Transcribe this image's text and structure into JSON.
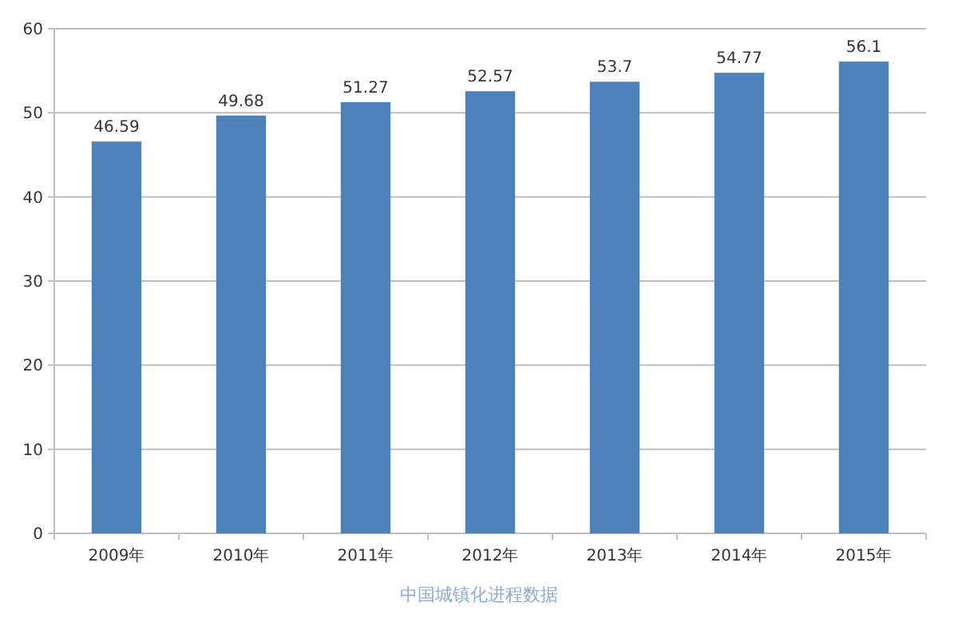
{
  "chart_data": {
    "type": "bar",
    "categories": [
      "2009年",
      "2010年",
      "2011年",
      "2012年",
      "2013年",
      "2014年",
      "2015年"
    ],
    "values": [
      46.59,
      49.68,
      51.27,
      52.57,
      53.7,
      54.77,
      56.1
    ],
    "color": "#4f81bd",
    "ylim": [
      0,
      60
    ],
    "yticks": [
      0,
      10,
      20,
      30,
      40,
      50,
      60
    ],
    "grid": "y",
    "data_labels": true,
    "annotations": [
      "中国城镇化进程数据"
    ]
  }
}
